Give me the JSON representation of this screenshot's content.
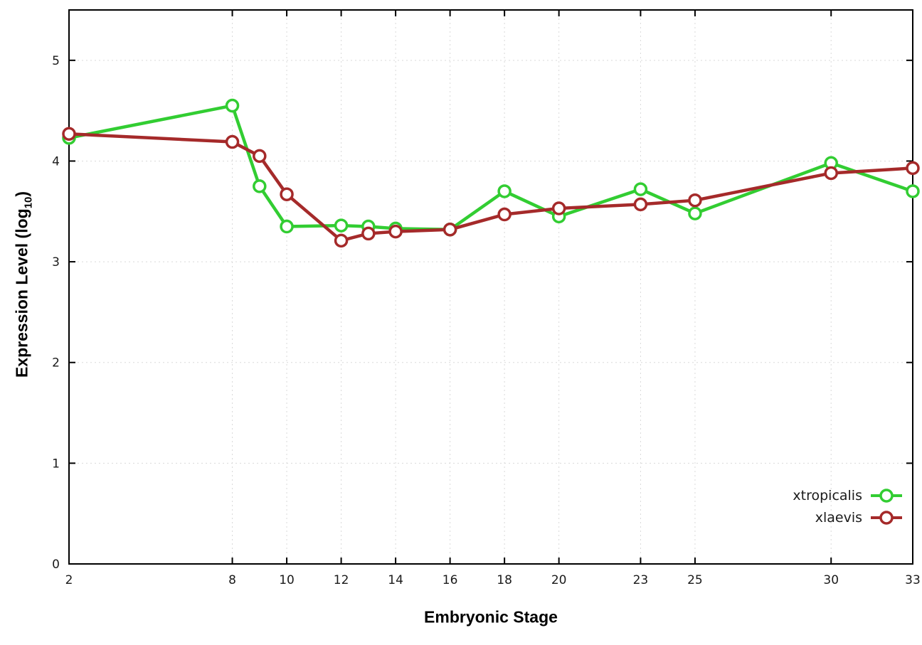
{
  "chart_data": {
    "type": "line",
    "title": "",
    "xlabel": "Embryonic Stage",
    "ylabel": "Expression Level (log10)",
    "ylabel_prefix": "Expression Level (log",
    "ylabel_sub": "10",
    "ylabel_suffix": ")",
    "xlim": [
      2,
      33
    ],
    "ylim": [
      0,
      5.5
    ],
    "xticks": [
      2,
      8,
      10,
      12,
      14,
      16,
      18,
      20,
      23,
      25,
      30,
      33
    ],
    "yticks": [
      0,
      1,
      2,
      3,
      4,
      5
    ],
    "grid": true,
    "grid_color": "#d9d9d9",
    "legend_position": "bottom-right-inside",
    "x": [
      2,
      8,
      9,
      10,
      12,
      13,
      14,
      16,
      18,
      20,
      23,
      25,
      30,
      33
    ],
    "series": [
      {
        "name": "xtropicalis",
        "color": "#32cd32",
        "values": [
          4.23,
          4.55,
          3.75,
          3.35,
          3.36,
          3.35,
          3.33,
          3.32,
          3.7,
          3.45,
          3.72,
          3.48,
          3.98,
          3.7
        ]
      },
      {
        "name": "xlaevis",
        "color": "#a52a2a",
        "values": [
          4.27,
          4.19,
          4.05,
          3.67,
          3.21,
          3.28,
          3.3,
          3.32,
          3.47,
          3.53,
          3.57,
          3.61,
          3.88,
          3.93
        ]
      }
    ]
  }
}
